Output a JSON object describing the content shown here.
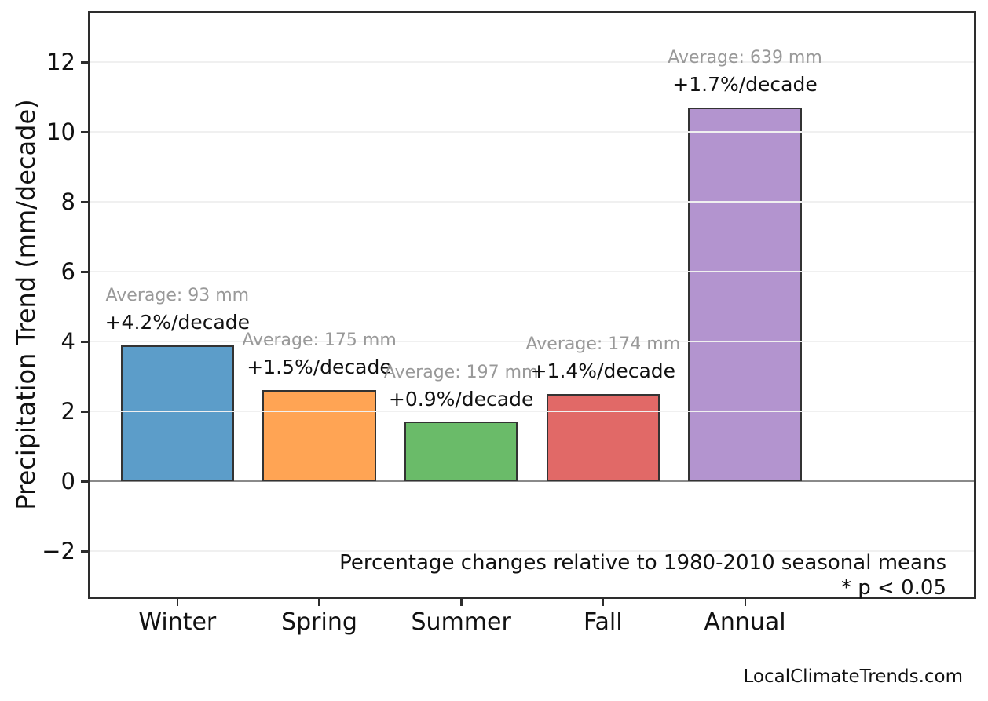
{
  "watermark": "LocalClimateTrends.com",
  "chart_data": {
    "type": "bar",
    "title": "",
    "xlabel": "",
    "ylabel": "Precipitation Trend (mm/decade)",
    "categories": [
      "Winter",
      "Spring",
      "Summer",
      "Fall",
      "Annual"
    ],
    "values": [
      3.9,
      2.6,
      1.7,
      2.5,
      10.7
    ],
    "bars": [
      {
        "category": "Winter",
        "value": 3.9,
        "average_mm": 93,
        "avg_label": "Average: 93 mm",
        "pct_label": "+4.2%/decade",
        "color": "#5C9DC9"
      },
      {
        "category": "Spring",
        "value": 2.6,
        "average_mm": 175,
        "avg_label": "Average: 175 mm",
        "pct_label": "+1.5%/decade",
        "color": "#FFA454"
      },
      {
        "category": "Summer",
        "value": 1.7,
        "average_mm": 197,
        "avg_label": "Average: 197 mm",
        "pct_label": "+0.9%/decade",
        "color": "#6ABB69"
      },
      {
        "category": "Fall",
        "value": 2.5,
        "average_mm": 174,
        "avg_label": "Average: 174 mm",
        "pct_label": "+1.4%/decade",
        "color": "#E16967"
      },
      {
        "category": "Annual",
        "value": 10.7,
        "average_mm": 639,
        "avg_label": "Average: 639 mm",
        "pct_label": "+1.7%/decade",
        "color": "#B394CF"
      }
    ],
    "yticks": [
      -2,
      0,
      2,
      4,
      6,
      8,
      10,
      12
    ],
    "ylim": [
      -3.37,
      13.47
    ],
    "grid": true,
    "legend": "none",
    "notes": [
      "Percentage changes relative to 1980-2010 seasonal means",
      "* p < 0.05"
    ],
    "colors": {
      "bar_edge": "#333333",
      "grid": "#F0F0F0",
      "zero_line": "#8A8A8A",
      "frame": "#2D2D2D",
      "annotation_gray": "#999999",
      "text": "#111111"
    }
  }
}
